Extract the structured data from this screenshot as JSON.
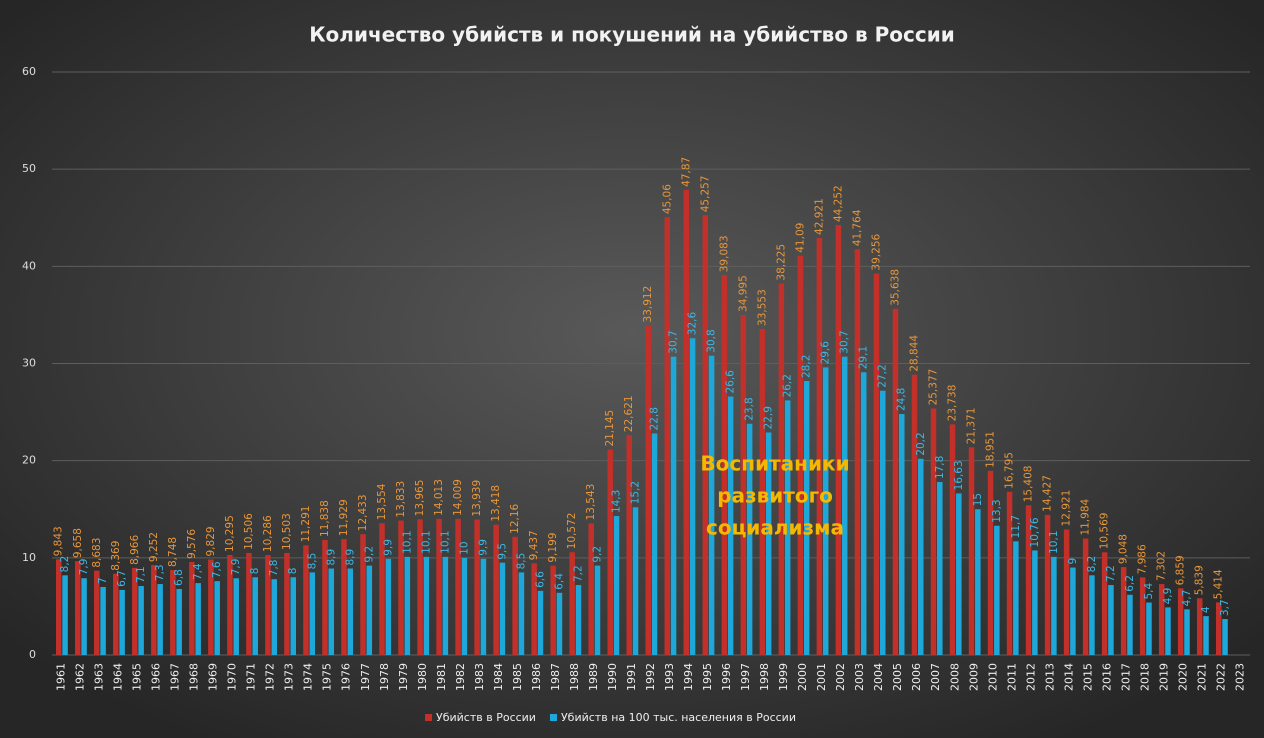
{
  "chart_data": {
    "type": "bar",
    "title": "Количество убийств и покушений на убийство в России",
    "annotation": [
      "Воспитаники",
      "развитого",
      "социализма"
    ],
    "categories": [
      "1961",
      "1962",
      "1963",
      "1964",
      "1965",
      "1966",
      "1967",
      "1968",
      "1969",
      "1970",
      "1971",
      "1972",
      "1973",
      "1974",
      "1975",
      "1976",
      "1977",
      "1978",
      "1979",
      "1980",
      "1981",
      "1982",
      "1983",
      "1984",
      "1985",
      "1986",
      "1987",
      "1988",
      "1989",
      "1990",
      "1991",
      "1992",
      "1993",
      "1994",
      "1995",
      "1996",
      "1997",
      "1998",
      "1999",
      "2000",
      "2001",
      "2002",
      "2003",
      "2004",
      "2005",
      "2006",
      "2007",
      "2008",
      "2009",
      "2010",
      "2011",
      "2012",
      "2013",
      "2014",
      "2015",
      "2016",
      "2017",
      "2018",
      "2019",
      "2020",
      "2021",
      "2022",
      "2023"
    ],
    "series": [
      {
        "name": "Убийств в России",
        "color": "#c3302a",
        "label_color": "#e8963a",
        "values": [
          9.843,
          9.658,
          8.683,
          8.369,
          8.966,
          9.252,
          8.748,
          9.576,
          9.829,
          10.295,
          10.506,
          10.286,
          10.503,
          11.291,
          11.838,
          11.929,
          12.433,
          13.554,
          13.833,
          13.965,
          14.013,
          14.009,
          13.939,
          13.418,
          12.16,
          9.437,
          9.199,
          10.572,
          13.543,
          21.145,
          22.621,
          33.912,
          45.06,
          47.87,
          45.257,
          39.083,
          34.995,
          33.553,
          38.225,
          41.09,
          42.921,
          44.252,
          41.764,
          39.256,
          35.638,
          28.844,
          25.377,
          23.738,
          21.371,
          18.951,
          16.795,
          15.408,
          14.427,
          12.921,
          11.984,
          10.569,
          9.048,
          7.986,
          7.302,
          6.859,
          5.839,
          5.414,
          null
        ],
        "value_labels": [
          "9,843",
          "9,658",
          "8,683",
          "8,369",
          "8,966",
          "9,252",
          "8,748",
          "9,576",
          "9,829",
          "10,295",
          "10,506",
          "10,286",
          "10,503",
          "11,291",
          "11,838",
          "11,929",
          "12,433",
          "13,554",
          "13,833",
          "13,965",
          "14,013",
          "14,009",
          "13,939",
          "13,418",
          "12,16",
          "9,437",
          "9,199",
          "10,572",
          "13,543",
          "21,145",
          "22,621",
          "33,912",
          "45,06",
          "47,87",
          "45,257",
          "39,083",
          "34,995",
          "33,553",
          "38,225",
          "41,09",
          "42,921",
          "44,252",
          "41,764",
          "39,256",
          "35,638",
          "28,844",
          "25,377",
          "23,738",
          "21,371",
          "18,951",
          "16,795",
          "15,408",
          "14,427",
          "12,921",
          "11,984",
          "10,569",
          "9,048",
          "7,986",
          "7,302",
          "6,859",
          "5,839",
          "5,414",
          null
        ]
      },
      {
        "name": "Убийств на 100 тыс. населения в России",
        "color": "#1ea8da",
        "label_color": "#3cb8e6",
        "values": [
          8.2,
          7.9,
          7,
          6.7,
          7.1,
          7.3,
          6.8,
          7.4,
          7.6,
          7.9,
          8,
          7.8,
          8,
          8.5,
          8.9,
          8.9,
          9.2,
          9.9,
          10.1,
          10.1,
          10.1,
          10,
          9.9,
          9.5,
          8.5,
          6.6,
          6.4,
          7.2,
          9.2,
          14.3,
          15.2,
          22.8,
          30.7,
          32.6,
          30.8,
          26.6,
          23.8,
          22.9,
          26.2,
          28.2,
          29.6,
          30.7,
          29.1,
          27.2,
          24.8,
          20.2,
          17.8,
          16.63,
          15,
          13.3,
          11.7,
          10.76,
          10.1,
          9,
          8.2,
          7.2,
          6.2,
          5.4,
          4.9,
          4.7,
          4,
          3.7,
          null
        ],
        "value_labels": [
          "8,2",
          "7,9",
          "7",
          "6,7",
          "7,1",
          "7,3",
          "6,8",
          "7,4",
          "7,6",
          "7,9",
          "8",
          "7,8",
          "8",
          "8,5",
          "8,9",
          "8,9",
          "9,2",
          "9,9",
          "10,1",
          "10,1",
          "10,1",
          "10",
          "9,9",
          "9,5",
          "8,5",
          "6,6",
          "6,4",
          "7,2",
          "9,2",
          "14,3",
          "15,2",
          "22,8",
          "30,7",
          "32,6",
          "30,8",
          "26,6",
          "23,8",
          "22,9",
          "26,2",
          "28,2",
          "29,6",
          "30,7",
          "29,1",
          "27,2",
          "24,8",
          "20,2",
          "17,8",
          "16,63",
          "15",
          "13,3",
          "11,7",
          "10,76",
          "10,1",
          "9",
          "8,2",
          "7,2",
          "6,2",
          "5,4",
          "4,9",
          "4,7",
          "4",
          "3,7",
          null
        ]
      }
    ],
    "ylim": [
      0,
      60
    ],
    "yticks": [
      0,
      10,
      20,
      30,
      40,
      50,
      60
    ],
    "grid": true,
    "legend": "bottom"
  }
}
